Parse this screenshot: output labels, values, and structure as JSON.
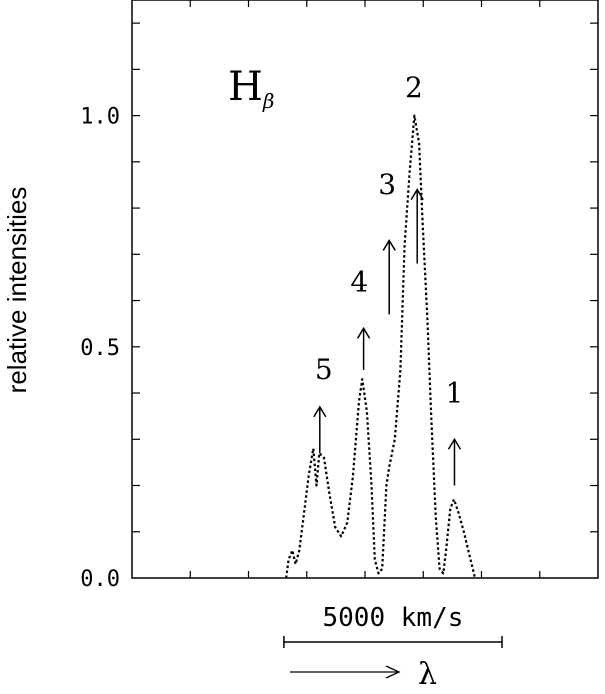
{
  "chart_data": {
    "type": "line",
    "title": "H",
    "title_subscript": "β",
    "ylabel": "relative intensities",
    "ylim": [
      0,
      1.25
    ],
    "xlim": [
      0,
      100
    ],
    "yticks": [
      {
        "value": 0.0,
        "label": "0.0"
      },
      {
        "value": 0.5,
        "label": "0.5"
      },
      {
        "value": 1.0,
        "label": "1.0"
      }
    ],
    "line_style": "dotted",
    "grid": false,
    "series": [
      {
        "points": [
          [
            33.1,
            0.0
          ],
          [
            33.6,
            0.04
          ],
          [
            34.4,
            0.06
          ],
          [
            35.1,
            0.03
          ],
          [
            35.9,
            0.06
          ],
          [
            36.9,
            0.14
          ],
          [
            37.9,
            0.22
          ],
          [
            38.9,
            0.28
          ],
          [
            39.6,
            0.2
          ],
          [
            40.2,
            0.27
          ],
          [
            41.2,
            0.26
          ],
          [
            42.4,
            0.18
          ],
          [
            43.6,
            0.11
          ],
          [
            44.9,
            0.09
          ],
          [
            46.2,
            0.12
          ],
          [
            47.4,
            0.22
          ],
          [
            48.7,
            0.38
          ],
          [
            49.4,
            0.43
          ],
          [
            50.4,
            0.36
          ],
          [
            51.4,
            0.2
          ],
          [
            52.1,
            0.04
          ],
          [
            52.9,
            0.01
          ],
          [
            53.7,
            0.02
          ],
          [
            54.6,
            0.2
          ],
          [
            55.2,
            0.24
          ],
          [
            56.4,
            0.3
          ],
          [
            57.6,
            0.45
          ],
          [
            58.5,
            0.72
          ],
          [
            59.6,
            0.88
          ],
          [
            60.6,
            1.0
          ],
          [
            61.6,
            0.94
          ],
          [
            62.4,
            0.76
          ],
          [
            63.4,
            0.56
          ],
          [
            64.2,
            0.35
          ],
          [
            65.2,
            0.13
          ],
          [
            66.0,
            0.02
          ],
          [
            66.8,
            0.01
          ],
          [
            67.4,
            0.06
          ],
          [
            68.3,
            0.15
          ],
          [
            69.1,
            0.17
          ],
          [
            70.1,
            0.14
          ],
          [
            71.2,
            0.1
          ],
          [
            72.4,
            0.05
          ],
          [
            73.6,
            0.0
          ]
        ]
      }
    ],
    "annotations": [
      {
        "label": "1",
        "x": 69.2,
        "arrow_from": 0.2,
        "arrow_to": 0.3,
        "label_y": 0.38
      },
      {
        "label": "2",
        "x": 60.5,
        "label_y": 1.04
      },
      {
        "label": "3",
        "x": 61.2,
        "arrow_from": 0.68,
        "arrow_to": 0.84,
        "label_y": 0.83
      },
      {
        "label": "4",
        "x": 55.2,
        "arrow_from": 0.57,
        "arrow_to": 0.73,
        "label_y": 0.62
      },
      {
        "label": "4",
        "x": 49.7,
        "arrow_from": 0.45,
        "arrow_to": 0.54,
        "skip_label": true
      },
      {
        "label": "5",
        "x": 40.3,
        "arrow_from": 0.27,
        "arrow_to": 0.37,
        "label_y": 0.43
      }
    ],
    "scale_bar": {
      "label": "5000   km/s",
      "x_start": 32.6,
      "x_end": 79.4
    },
    "direction_label": "λ"
  }
}
